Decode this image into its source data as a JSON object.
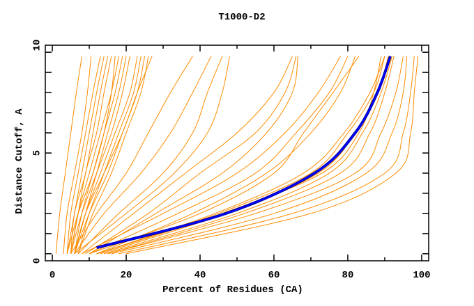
{
  "chart_data": {
    "type": "line",
    "title": "T1000-D2",
    "xlabel": "Percent of Residues (CA)",
    "ylabel": "Distance Cutoff, A",
    "xlim": [
      -1.9,
      101.9
    ],
    "ylim": [
      -0.35,
      10.35
    ],
    "x_ticks": [
      0,
      20,
      40,
      60,
      80,
      100
    ],
    "y_ticks": [
      0,
      5,
      10
    ],
    "grid": false,
    "colors": {
      "models": "#ff8c00",
      "highlight": "#0000ff",
      "highlight_edge": "#000080"
    },
    "y_levels": [
      0,
      2,
      4,
      6,
      8,
      9.8
    ],
    "series": [
      {
        "x": [
          1,
          2,
          3.5,
          5,
          6.5,
          8
        ]
      },
      {
        "x": [
          3,
          4,
          6,
          8,
          9.5,
          10.5
        ]
      },
      {
        "x": [
          4,
          5,
          7,
          9,
          11,
          13
        ]
      },
      {
        "x": [
          4,
          6,
          8,
          10,
          12,
          14
        ]
      },
      {
        "x": [
          5,
          6,
          9,
          11,
          13,
          15
        ]
      },
      {
        "x": [
          5,
          7,
          9,
          12,
          14,
          16
        ]
      },
      {
        "x": [
          5,
          7,
          10,
          13,
          16,
          18
        ]
      },
      {
        "x": [
          6,
          8,
          11,
          14,
          17,
          19
        ]
      },
      {
        "x": [
          6,
          9,
          12,
          15,
          18,
          20
        ]
      },
      {
        "x": [
          5,
          8,
          12,
          16,
          19,
          21
        ]
      },
      {
        "x": [
          6,
          9,
          13,
          17,
          21,
          23
        ]
      },
      {
        "x": [
          7,
          10,
          14,
          18,
          22,
          24
        ]
      },
      {
        "x": [
          6,
          10,
          15,
          19,
          23,
          25
        ]
      },
      {
        "x": [
          7,
          11,
          16,
          20,
          24,
          26
        ]
      },
      {
        "x": [
          6,
          9,
          14,
          19,
          23,
          27
        ]
      },
      {
        "x": [
          4,
          7,
          11,
          14,
          16,
          17
        ]
      },
      {
        "x": [
          5,
          12,
          20,
          26,
          32,
          38
        ]
      },
      {
        "x": [
          6,
          14,
          24,
          32,
          38,
          43
        ]
      },
      {
        "x": [
          7,
          18,
          30,
          38,
          42,
          46
        ]
      },
      {
        "x": [
          6,
          20,
          33,
          42,
          46,
          48
        ]
      },
      {
        "x": [
          8,
          22,
          36,
          50,
          60,
          65
        ]
      },
      {
        "x": [
          9,
          26,
          40,
          55,
          63,
          66
        ]
      },
      {
        "x": [
          10,
          28,
          46,
          58,
          65,
          66.5
        ]
      },
      {
        "x": [
          8,
          30,
          50,
          63,
          72,
          78
        ]
      },
      {
        "x": [
          10,
          34,
          55,
          66,
          75,
          80
        ]
      },
      {
        "x": [
          12,
          38,
          58,
          70,
          78,
          82
        ]
      },
      {
        "x": [
          10,
          40,
          60,
          68,
          76,
          83
        ]
      },
      {
        "x": [
          12,
          45,
          70,
          80,
          87,
          90
        ]
      },
      {
        "x": [
          13,
          47,
          72,
          82,
          88,
          91
        ]
      },
      {
        "x": [
          12,
          44,
          68,
          79,
          86,
          90
        ]
      },
      {
        "x": [
          14,
          50,
          75,
          84,
          89,
          92
        ]
      },
      {
        "x": [
          12,
          46,
          73,
          83,
          87,
          89
        ]
      },
      {
        "x": [
          15,
          52,
          78,
          86,
          90,
          92.5
        ]
      },
      {
        "x": [
          15,
          55,
          82,
          89,
          93,
          95
        ]
      },
      {
        "x": [
          16,
          60,
          85,
          92,
          95,
          96
        ]
      },
      {
        "x": [
          18,
          65,
          90,
          95,
          97,
          98
        ]
      },
      {
        "x": [
          20,
          70,
          93,
          97,
          98,
          99
        ]
      }
    ],
    "highlight": {
      "x": [
        12,
        47,
        71,
        82,
        88,
        91.5
      ],
      "y": [
        0.3,
        2,
        4,
        6,
        8,
        9.8
      ]
    }
  }
}
